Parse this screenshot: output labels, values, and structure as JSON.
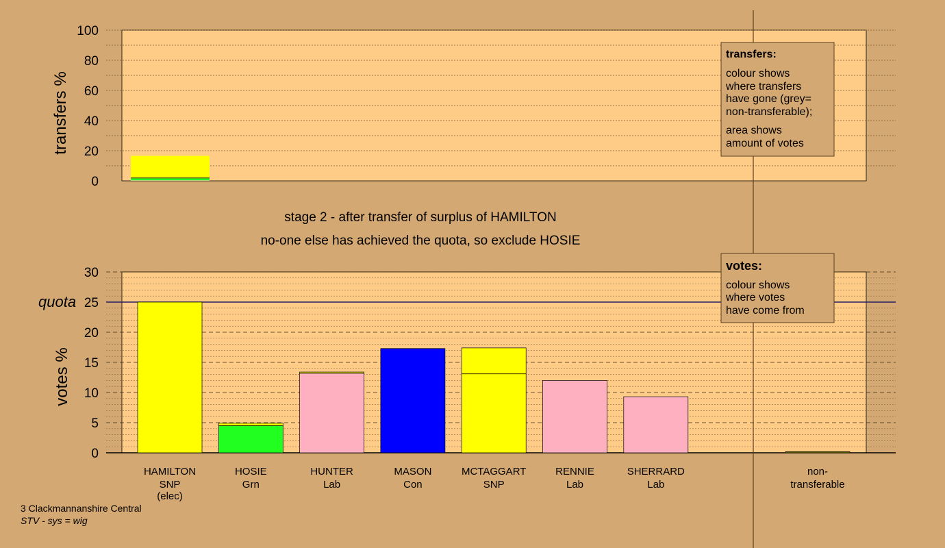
{
  "chart_data": [
    {
      "type": "bar",
      "ylabel": "transfers %",
      "yticks": [
        0,
        20,
        40,
        60,
        80,
        100
      ],
      "ylim": [
        0,
        100
      ],
      "segments": [
        {
          "candidate": "HAMILTON",
          "to": "HUNTER",
          "from": 0,
          "to_value": 0.3,
          "color": "#ffb0c0"
        },
        {
          "candidate": "HAMILTON",
          "to": "HOSIE",
          "from": 0.3,
          "to_value": 1.6,
          "color": "#20ff20"
        },
        {
          "candidate": "HAMILTON",
          "to": "non-transferable",
          "from": 1.6,
          "to_value": 2.0,
          "color": "#707000"
        },
        {
          "candidate": "HAMILTON",
          "to": "MCTAGGART",
          "from": 2.0,
          "to_value": 16.4,
          "color": "#ffff00"
        }
      ],
      "legend": {
        "title": "transfers:",
        "lines": [
          "colour shows",
          "where transfers",
          "have gone (grey=",
          "non-transferable);"
        ],
        "lines2": [
          "area shows",
          "amount of votes"
        ]
      }
    },
    {
      "type": "bar",
      "ylabel": "votes %",
      "yticks": [
        0,
        5,
        10,
        15,
        20,
        25,
        30
      ],
      "ylim": [
        0,
        30
      ],
      "quota": {
        "label": "quota",
        "value": 25
      },
      "candidates": [
        {
          "name": "HAMILTON",
          "party": "SNP",
          "note": "(elec)",
          "segments": [
            {
              "value": 25.0,
              "color": "#ffff00"
            }
          ]
        },
        {
          "name": "HOSIE",
          "party": "Grn",
          "note": "",
          "segments": [
            {
              "value": 4.5,
              "color": "#20ff20"
            },
            {
              "value": 0.4,
              "color": "#ffff00"
            }
          ]
        },
        {
          "name": "HUNTER",
          "party": "Lab",
          "note": "",
          "segments": [
            {
              "value": 13.2,
              "color": "#ffb0c0"
            },
            {
              "value": 0.2,
              "color": "#ffff00"
            }
          ]
        },
        {
          "name": "MASON",
          "party": "Con",
          "note": "",
          "segments": [
            {
              "value": 17.3,
              "color": "#0000ff"
            }
          ]
        },
        {
          "name": "MCTAGGART",
          "party": "SNP",
          "note": "",
          "segments": [
            {
              "value": 13.1,
              "color": "#ffff00"
            },
            {
              "value": 4.3,
              "color": "#ffff00"
            }
          ]
        },
        {
          "name": "RENNIE",
          "party": "Lab",
          "note": "",
          "segments": [
            {
              "value": 12.0,
              "color": "#ffb0c0"
            }
          ]
        },
        {
          "name": "SHERRARD",
          "party": "Lab",
          "note": "",
          "segments": [
            {
              "value": 9.3,
              "color": "#ffb0c0"
            }
          ]
        }
      ],
      "non_transferable": {
        "label1": "non-",
        "label2": "transferable",
        "value": 0.2,
        "color": "#707000"
      },
      "legend": {
        "title": "votes:",
        "lines": [
          "colour shows",
          "where votes",
          "have come from"
        ]
      }
    }
  ],
  "stage_line1": "stage 2 - after transfer of surplus of HAMILTON",
  "stage_line2": "no-one else has achieved the quota, so exclude HOSIE",
  "footer": {
    "ward": "3 Clackmannanshire Central",
    "system": "STV - sys = wig"
  }
}
